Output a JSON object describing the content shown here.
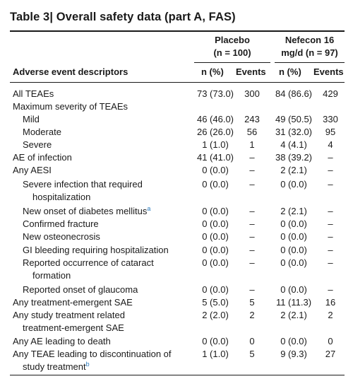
{
  "title": "Table 3| Overall safety data (part A, FAS)",
  "header": {
    "placebo_line1": "Placebo",
    "placebo_line2": "(n = 100)",
    "nefecon_line1": "Nefecon 16",
    "nefecon_line2": "mg/d (n = 97)",
    "col_descriptor": "Adverse event descriptors",
    "col_n_placebo": "n (%)",
    "col_events_placebo": "Events",
    "col_n_nefecon": "n (%)",
    "col_events_nefecon": "Events"
  },
  "rows": [
    {
      "label": "All TEAEs",
      "p_n": "73 (73.0)",
      "p_e": "300",
      "n_n": "84 (86.6)",
      "n_e": "429"
    },
    {
      "label": "Maximum severity of TEAEs",
      "p_n": "",
      "p_e": "",
      "n_n": "",
      "n_e": ""
    },
    {
      "label": "Mild",
      "p_n": "46 (46.0)",
      "p_e": "243",
      "n_n": "49 (50.5)",
      "n_e": "330"
    },
    {
      "label": "Moderate",
      "p_n": "26 (26.0)",
      "p_e": "56",
      "n_n": "31 (32.0)",
      "n_e": "95"
    },
    {
      "label": "Severe",
      "p_n": "1 (1.0)",
      "p_e": "1",
      "n_n": "4 (4.1)",
      "n_e": "4"
    },
    {
      "label": "AE of infection",
      "p_n": "41 (41.0)",
      "p_e": "–",
      "n_n": "38 (39.2)",
      "n_e": "–"
    },
    {
      "label": "Any AESI",
      "p_n": "0 (0.0)",
      "p_e": "–",
      "n_n": "2 (2.1)",
      "n_e": "–"
    },
    {
      "label": "Severe infection that required",
      "label2": "hospitalization",
      "p_n": "0 (0.0)",
      "p_e": "–",
      "n_n": "0 (0.0)",
      "n_e": "–"
    },
    {
      "label": "New onset of diabetes mellitus",
      "sup": "a",
      "p_n": "0 (0.0)",
      "p_e": "–",
      "n_n": "2 (2.1)",
      "n_e": "–"
    },
    {
      "label": "Confirmed fracture",
      "p_n": "0 (0.0)",
      "p_e": "–",
      "n_n": "0 (0.0)",
      "n_e": "–"
    },
    {
      "label": "New osteonecrosis",
      "p_n": "0 (0.0)",
      "p_e": "–",
      "n_n": "0 (0.0)",
      "n_e": "–"
    },
    {
      "label": "GI bleeding requiring hospitalization",
      "p_n": "0 (0.0)",
      "p_e": "–",
      "n_n": "0 (0.0)",
      "n_e": "–"
    },
    {
      "label": "Reported occurrence of cataract",
      "label2": "formation",
      "p_n": "0 (0.0)",
      "p_e": "–",
      "n_n": "0 (0.0)",
      "n_e": "–"
    },
    {
      "label": "Reported onset of glaucoma",
      "p_n": "0 (0.0)",
      "p_e": "–",
      "n_n": "0 (0.0)",
      "n_e": "–"
    },
    {
      "label": "Any treatment-emergent SAE",
      "p_n": "5 (5.0)",
      "p_e": "5",
      "n_n": "11 (11.3)",
      "n_e": "16"
    },
    {
      "label": "Any study treatment related",
      "label2": "treatment-emergent SAE",
      "p_n": "2 (2.0)",
      "p_e": "2",
      "n_n": "2 (2.1)",
      "n_e": "2"
    },
    {
      "label": "Any AE leading to death",
      "p_n": "0 (0.0)",
      "p_e": "0",
      "n_n": "0 (0.0)",
      "n_e": "0"
    },
    {
      "label": "Any TEAE leading to discontinuation of",
      "label2": "study treatment",
      "sup2": "b",
      "p_n": "1 (1.0)",
      "p_e": "5",
      "n_n": "9 (9.3)",
      "n_e": "27"
    }
  ]
}
